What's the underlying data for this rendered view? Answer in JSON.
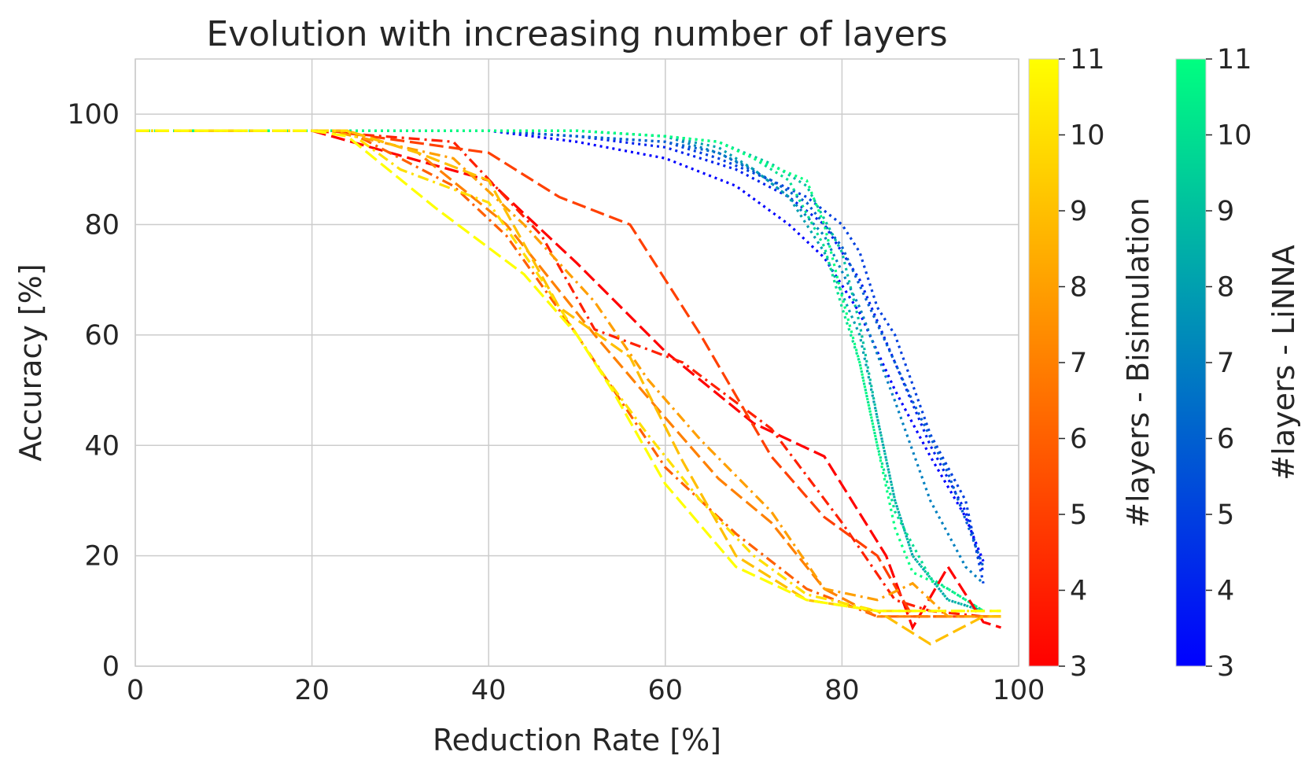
{
  "chart_data": {
    "type": "line",
    "title": "Evolution with increasing number of layers",
    "xlabel": "Reduction Rate [%]",
    "ylabel": "Accuracy [%]",
    "xlim": [
      0,
      100
    ],
    "ylim": [
      0,
      110
    ],
    "xticks": [
      "0",
      "20",
      "40",
      "60",
      "80",
      "100"
    ],
    "yticks": [
      "0",
      "20",
      "40",
      "60",
      "80",
      "100"
    ],
    "grid": true,
    "colorbars": [
      {
        "label": "#layers - Bisimulation",
        "colormap": "autumn",
        "range": [
          3,
          11
        ],
        "ticks": [
          "3",
          "4",
          "5",
          "6",
          "7",
          "8",
          "9",
          "10",
          "11"
        ],
        "color_low": "#ff0000",
        "color_high": "#ffff00"
      },
      {
        "label": "#layers - LiNNA",
        "colormap": "winter",
        "range": [
          3,
          11
        ],
        "ticks": [
          "3",
          "4",
          "5",
          "6",
          "7",
          "8",
          "9",
          "10",
          "11"
        ],
        "color_low": "#0000ff",
        "color_high": "#00ff80"
      }
    ],
    "series": [
      {
        "name": "Bisimulation 3 layers",
        "group": "bisim",
        "layers": 3,
        "x": [
          0,
          20,
          40,
          50,
          60,
          70,
          78,
          85,
          88,
          92,
          96,
          98
        ],
        "y": [
          97,
          97,
          88,
          73,
          57,
          44,
          38,
          20,
          7,
          18,
          8,
          7
        ]
      },
      {
        "name": "Bisimulation 4 layers",
        "group": "bisim",
        "layers": 4,
        "x": [
          0,
          20,
          36,
          46,
          52,
          62,
          72,
          80,
          86,
          90,
          96,
          98
        ],
        "y": [
          97,
          97,
          95,
          78,
          61,
          55,
          43,
          26,
          12,
          10,
          9,
          9
        ]
      },
      {
        "name": "Bisimulation 5 layers",
        "group": "bisim",
        "layers": 5,
        "x": [
          0,
          22,
          40,
          48,
          56,
          64,
          72,
          78,
          84,
          88,
          96,
          98
        ],
        "y": [
          97,
          97,
          93,
          85,
          80,
          60,
          38,
          27,
          20,
          9,
          9,
          9
        ]
      },
      {
        "name": "Bisimulation 6 layers",
        "group": "bisim",
        "layers": 6,
        "x": [
          0,
          24,
          36,
          42,
          50,
          60,
          68,
          76,
          84,
          92,
          98
        ],
        "y": [
          97,
          97,
          87,
          78,
          60,
          36,
          24,
          14,
          9,
          9,
          9
        ]
      },
      {
        "name": "Bisimulation 7 layers",
        "group": "bisim",
        "layers": 7,
        "x": [
          0,
          24,
          32,
          42,
          52,
          60,
          66,
          72,
          78,
          84,
          90,
          96,
          98
        ],
        "y": [
          97,
          97,
          93,
          80,
          60,
          45,
          34,
          26,
          14,
          9,
          9,
          9,
          9
        ]
      },
      {
        "name": "Bisimulation 8 layers",
        "group": "bisim",
        "layers": 8,
        "x": [
          0,
          22,
          36,
          44,
          52,
          58,
          64,
          72,
          78,
          84,
          88,
          92,
          96,
          98
        ],
        "y": [
          97,
          97,
          92,
          80,
          66,
          52,
          41,
          28,
          14,
          12,
          15,
          9,
          9,
          9
        ]
      },
      {
        "name": "Bisimulation 9 layers",
        "group": "bisim",
        "layers": 9,
        "x": [
          0,
          24,
          32,
          40,
          48,
          56,
          62,
          68,
          76,
          84,
          90,
          96,
          98
        ],
        "y": [
          97,
          97,
          93,
          88,
          65,
          56,
          37,
          20,
          12,
          10,
          4,
          9,
          9
        ]
      },
      {
        "name": "Bisimulation 10 layers",
        "group": "bisim",
        "layers": 10,
        "x": [
          0,
          24,
          30,
          40,
          46,
          52,
          58,
          64,
          70,
          76,
          84,
          92,
          98
        ],
        "y": [
          97,
          97,
          90,
          84,
          70,
          55,
          42,
          30,
          20,
          13,
          10,
          10,
          10
        ]
      },
      {
        "name": "Bisimulation 11 layers",
        "group": "bisim",
        "layers": 11,
        "x": [
          0,
          20,
          24,
          34,
          44,
          50,
          54,
          60,
          68,
          76,
          84,
          92,
          98
        ],
        "y": [
          97,
          97,
          96,
          83,
          71,
          60,
          50,
          33,
          18,
          12,
          10,
          10,
          10
        ]
      },
      {
        "name": "LiNNA 3 layers",
        "group": "linna",
        "layers": 3,
        "x": [
          0,
          20,
          40,
          50,
          60,
          68,
          74,
          78,
          82,
          86,
          90,
          94,
          96
        ],
        "y": [
          97,
          97,
          97,
          95,
          92,
          87,
          80,
          74,
          64,
          50,
          38,
          27,
          19
        ]
      },
      {
        "name": "LiNNA 4 layers",
        "group": "linna",
        "layers": 4,
        "x": [
          0,
          20,
          40,
          50,
          60,
          68,
          74,
          78,
          82,
          86,
          90,
          94,
          96
        ],
        "y": [
          97,
          97,
          97,
          96,
          94,
          90,
          85,
          80,
          70,
          55,
          40,
          28,
          17
        ]
      },
      {
        "name": "LiNNA 5 layers",
        "group": "linna",
        "layers": 5,
        "x": [
          0,
          20,
          40,
          50,
          60,
          66,
          72,
          76,
          80,
          82,
          84,
          86,
          90,
          94,
          96
        ],
        "y": [
          97,
          97,
          97,
          96,
          95,
          92,
          88,
          85,
          80,
          75,
          65,
          60,
          42,
          30,
          15
        ]
      },
      {
        "name": "LiNNA 6 layers",
        "group": "linna",
        "layers": 6,
        "x": [
          0,
          20,
          40,
          50,
          60,
          66,
          72,
          76,
          80,
          84,
          88,
          92,
          96
        ],
        "y": [
          97,
          97,
          97,
          96,
          95,
          93,
          88,
          84,
          76,
          62,
          48,
          35,
          18
        ]
      },
      {
        "name": "LiNNA 7 layers",
        "group": "linna",
        "layers": 7,
        "x": [
          0,
          20,
          40,
          50,
          60,
          66,
          70,
          74,
          78,
          82,
          86,
          90,
          94,
          96
        ],
        "y": [
          97,
          97,
          97,
          97,
          96,
          93,
          90,
          85,
          78,
          65,
          48,
          30,
          18,
          15
        ]
      },
      {
        "name": "LiNNA 8 layers",
        "group": "linna",
        "layers": 8,
        "x": [
          0,
          20,
          40,
          50,
          60,
          66,
          70,
          74,
          78,
          82,
          84,
          86,
          88,
          92,
          96
        ],
        "y": [
          97,
          97,
          97,
          97,
          96,
          94,
          90,
          85,
          75,
          60,
          45,
          30,
          20,
          12,
          10
        ]
      },
      {
        "name": "LiNNA 9 layers",
        "group": "linna",
        "layers": 9,
        "x": [
          0,
          20,
          40,
          50,
          60,
          66,
          72,
          76,
          80,
          82,
          84,
          86,
          88,
          92,
          96
        ],
        "y": [
          97,
          97,
          97,
          97,
          96,
          95,
          91,
          87,
          75,
          62,
          45,
          30,
          20,
          12,
          10
        ]
      },
      {
        "name": "LiNNA 10 layers",
        "group": "linna",
        "layers": 10,
        "x": [
          0,
          20,
          40,
          50,
          60,
          66,
          70,
          74,
          78,
          80,
          82,
          84,
          86,
          90,
          96
        ],
        "y": [
          97,
          97,
          97,
          97,
          96,
          95,
          92,
          88,
          76,
          65,
          55,
          40,
          28,
          16,
          10
        ]
      },
      {
        "name": "LiNNA 11 layers",
        "group": "linna",
        "layers": 11,
        "x": [
          0,
          20,
          40,
          50,
          60,
          66,
          70,
          76,
          78,
          80,
          82,
          84,
          86,
          88,
          92,
          96
        ],
        "y": [
          97,
          97,
          97,
          97,
          96,
          95,
          92,
          88,
          80,
          67,
          55,
          40,
          25,
          17,
          14,
          10
        ]
      }
    ]
  }
}
